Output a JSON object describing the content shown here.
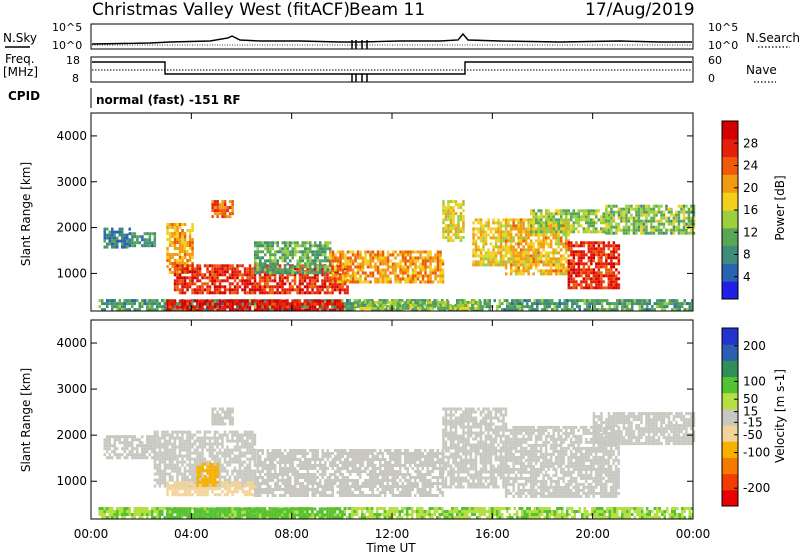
{
  "header": {
    "title": "Christmas Valley West (fitACF)",
    "beam": "Beam 11",
    "date": "17/Aug/2019"
  },
  "status_panels": {
    "nsky_label": "N.Sky",
    "nsky_ticks": [
      "10^5",
      "10^0"
    ],
    "nsearch_label": "N.Search",
    "nsearch_ticks": [
      "10^5",
      "10^0"
    ],
    "freq_label_line1": "Freq.",
    "freq_label_line2": "[MHz]",
    "freq_ticks": [
      "18",
      "8"
    ],
    "nave_label": "Nave",
    "nave_ticks": [
      "60",
      "0"
    ],
    "cpid_label": "CPID",
    "cpid_text": "normal (fast) -151 RF"
  },
  "colors": {
    "power_scale": [
      "#1f1fe6",
      "#2b63b3",
      "#3f8c7a",
      "#5aa657",
      "#9bcf3d",
      "#f2d01e",
      "#f29a10",
      "#ef5a08",
      "#e61f0a",
      "#d40000"
    ],
    "velocity_scale": [
      "#e60000",
      "#f23c00",
      "#f77a00",
      "#f7b000",
      "#f2d39a",
      "#c8c8c0",
      "#b4df45",
      "#55c234",
      "#2f8f57",
      "#2d5fb0",
      "#2432cf"
    ],
    "ground_scatter": "#c8c8c0"
  },
  "chart_data": [
    {
      "type": "heatmap",
      "name": "power",
      "ylabel": "Slant Range [km]",
      "yticks": [
        "1000",
        "2000",
        "3000",
        "4000"
      ],
      "ylim": [
        180,
        4500
      ],
      "xlim": [
        0,
        24
      ],
      "colorbar_label": "Power [dB]",
      "colorbar_ticks": [
        "4",
        "8",
        "12",
        "16",
        "20",
        "24",
        "28"
      ],
      "colorbar_range": [
        0,
        32
      ],
      "grid": false,
      "regions": [
        {
          "t0": 0.3,
          "t1": 24.0,
          "r0": 200,
          "r1": 440,
          "value": 10
        },
        {
          "t0": 3.0,
          "t1": 10.0,
          "r0": 220,
          "r1": 430,
          "value": 29
        },
        {
          "t0": 10.5,
          "t1": 15.5,
          "r0": 220,
          "r1": 400,
          "value": 14
        },
        {
          "t0": 3.0,
          "t1": 4.0,
          "r0": 1000,
          "r1": 2100,
          "value": 20
        },
        {
          "t0": 3.3,
          "t1": 10.2,
          "r0": 600,
          "r1": 1200,
          "value": 27
        },
        {
          "t0": 4.8,
          "t1": 5.6,
          "r0": 2250,
          "r1": 2600,
          "value": 24
        },
        {
          "t0": 6.5,
          "t1": 9.5,
          "r0": 1000,
          "r1": 1700,
          "value": 11
        },
        {
          "t0": 9.5,
          "t1": 14.0,
          "r0": 800,
          "r1": 1500,
          "value": 21
        },
        {
          "t0": 14.0,
          "t1": 14.8,
          "r0": 1700,
          "r1": 2600,
          "value": 17
        },
        {
          "t0": 15.2,
          "t1": 16.5,
          "r0": 1200,
          "r1": 2200,
          "value": 18
        },
        {
          "t0": 16.5,
          "t1": 19.0,
          "r0": 1000,
          "r1": 2200,
          "value": 19
        },
        {
          "t0": 19.0,
          "t1": 21.0,
          "r0": 700,
          "r1": 1700,
          "value": 27
        },
        {
          "t0": 17.5,
          "t1": 20.5,
          "r0": 1900,
          "r1": 2400,
          "value": 14
        },
        {
          "t0": 20.5,
          "t1": 24.0,
          "r0": 1900,
          "r1": 2500,
          "value": 13
        },
        {
          "t0": 0.5,
          "t1": 1.5,
          "r0": 1600,
          "r1": 2000,
          "value": 7
        },
        {
          "t0": 1.5,
          "t1": 2.5,
          "r0": 1600,
          "r1": 1900,
          "value": 9
        }
      ]
    },
    {
      "type": "heatmap",
      "name": "velocity",
      "ylabel": "Slant Range [km]",
      "yticks": [
        "1000",
        "2000",
        "3000",
        "4000"
      ],
      "ylim": [
        180,
        4500
      ],
      "xlim": [
        0,
        24
      ],
      "xlabel": "Time UT",
      "xticks": [
        "00:00",
        "04:00",
        "08:00",
        "12:00",
        "16:00",
        "20:00",
        "00:00"
      ],
      "colorbar_label": "Velocity [m s-1]",
      "colorbar_ticks": [
        "-200",
        "-100",
        "-50",
        "-15",
        "15",
        "50",
        "100",
        "200"
      ],
      "colorbar_range": [
        -250,
        250
      ],
      "grid": false,
      "regions": [
        {
          "t0": 0.3,
          "t1": 24.0,
          "r0": 200,
          "r1": 440,
          "value": 60
        },
        {
          "t0": 3.0,
          "t1": 10.0,
          "r0": 220,
          "r1": 430,
          "value": 90
        },
        {
          "t0": 0.5,
          "t1": 2.5,
          "r0": 1500,
          "r1": 2000,
          "value": 0
        },
        {
          "t0": 2.5,
          "t1": 6.5,
          "r0": 900,
          "r1": 2100,
          "value": 0
        },
        {
          "t0": 3.0,
          "t1": 6.5,
          "r0": 700,
          "r1": 1000,
          "value": -45
        },
        {
          "t0": 4.2,
          "t1": 5.0,
          "r0": 900,
          "r1": 1400,
          "value": -90
        },
        {
          "t0": 6.5,
          "t1": 14.0,
          "r0": 700,
          "r1": 1700,
          "value": 0
        },
        {
          "t0": 14.0,
          "t1": 16.5,
          "r0": 900,
          "r1": 2600,
          "value": 0
        },
        {
          "t0": 16.5,
          "t1": 21.0,
          "r0": 700,
          "r1": 2200,
          "value": 0
        },
        {
          "t0": 20.0,
          "t1": 24.0,
          "r0": 1800,
          "r1": 2500,
          "value": 0
        },
        {
          "t0": 4.8,
          "t1": 5.6,
          "r0": 2250,
          "r1": 2600,
          "value": 0
        }
      ]
    }
  ]
}
